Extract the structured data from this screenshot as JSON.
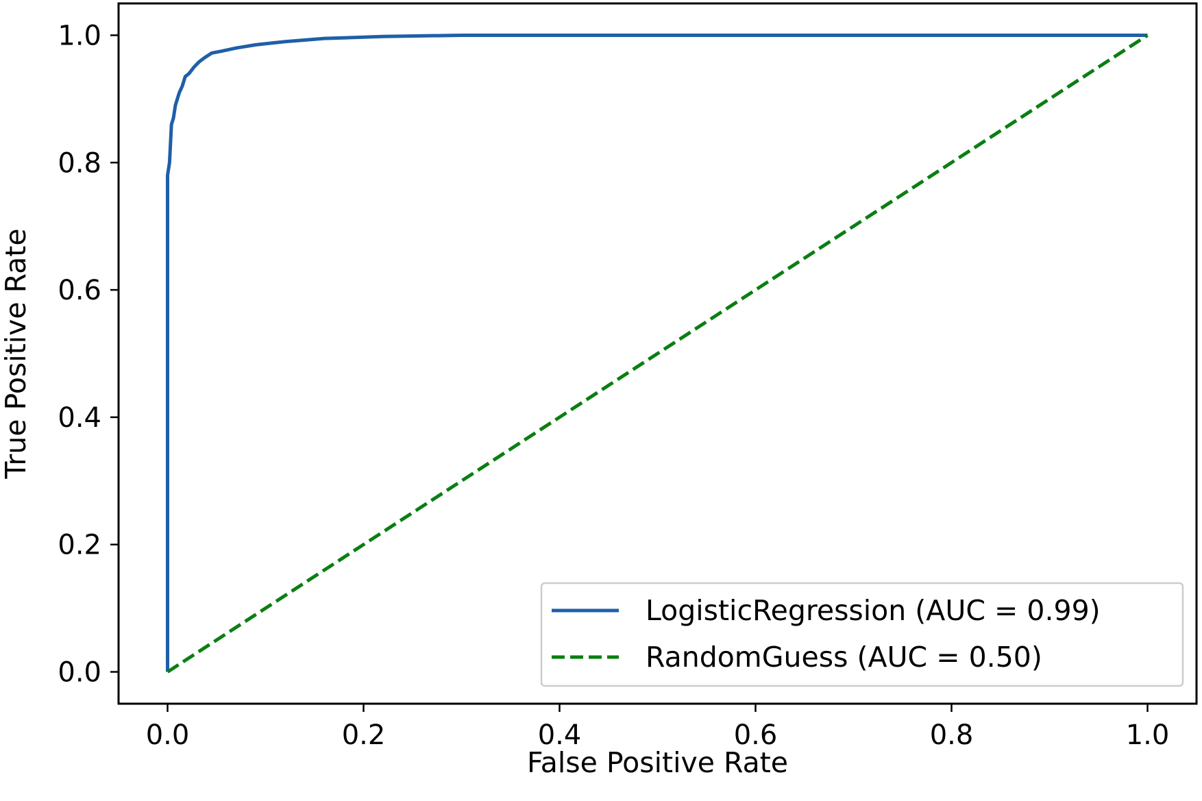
{
  "chart_data": {
    "type": "line",
    "title": "",
    "xlabel": "False Positive Rate",
    "ylabel": "True Positive Rate",
    "xlim": [
      -0.05,
      1.05
    ],
    "ylim": [
      -0.05,
      1.05
    ],
    "x_ticks": [
      0.0,
      0.2,
      0.4,
      0.6,
      0.8,
      1.0
    ],
    "y_ticks": [
      0.0,
      0.2,
      0.4,
      0.6,
      0.8,
      1.0
    ],
    "x_tick_labels": [
      "0.0",
      "0.2",
      "0.4",
      "0.6",
      "0.8",
      "1.0"
    ],
    "y_tick_labels": [
      "0.0",
      "0.2",
      "0.4",
      "0.6",
      "0.8",
      "1.0"
    ],
    "grid": false,
    "legend_position": "lower-right",
    "series": [
      {
        "name": "LogisticRegression (AUC = 0.99)",
        "color": "#1f5fa8",
        "style": "solid",
        "x": [
          0.0,
          0.0,
          0.0,
          0.002,
          0.003,
          0.004,
          0.006,
          0.008,
          0.01,
          0.012,
          0.015,
          0.018,
          0.022,
          0.027,
          0.032,
          0.038,
          0.045,
          0.055,
          0.07,
          0.09,
          0.12,
          0.16,
          0.22,
          0.3,
          1.0
        ],
        "y": [
          0.0,
          0.5,
          0.78,
          0.8,
          0.83,
          0.86,
          0.87,
          0.89,
          0.9,
          0.91,
          0.92,
          0.935,
          0.94,
          0.95,
          0.958,
          0.965,
          0.972,
          0.975,
          0.98,
          0.985,
          0.99,
          0.995,
          0.998,
          1.0,
          1.0
        ]
      },
      {
        "name": "RandomGuess (AUC = 0.50)",
        "color": "#0a7f12",
        "style": "dashed",
        "x": [
          0.0,
          1.0
        ],
        "y": [
          0.0,
          1.0
        ]
      }
    ]
  }
}
